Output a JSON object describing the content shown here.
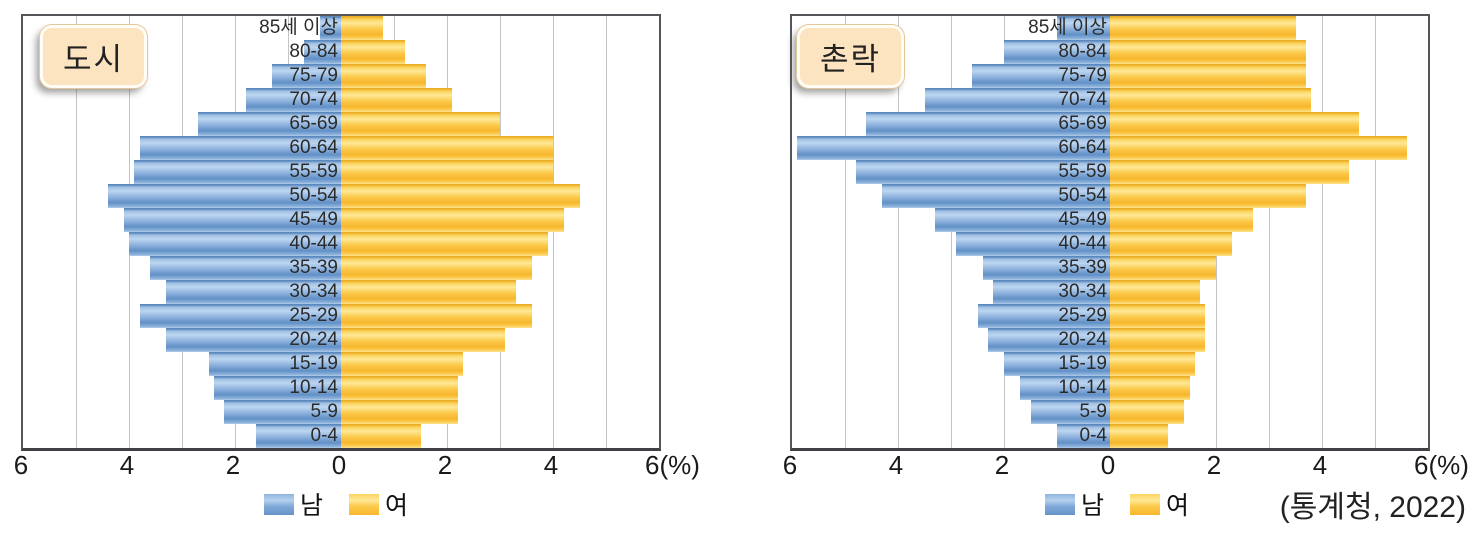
{
  "source_note": "(통계청, 2022)",
  "legend": {
    "male_label": "남",
    "female_label": "여"
  },
  "axis": {
    "tick_labels": [
      "6",
      "4",
      "2",
      "0",
      "2",
      "4",
      "6"
    ],
    "unit_suffix": "(%)",
    "max_percent": 6
  },
  "colors": {
    "male_bar": "#7ea8d8",
    "female_bar": "#fdc94a",
    "title_box_bg": "#fce4c0",
    "gridline": "#c3c4c6",
    "frame": "#55565a"
  },
  "age_groups_top_to_bottom": [
    "85세 이상",
    "80-84",
    "75-79",
    "70-74",
    "65-69",
    "60-64",
    "55-59",
    "50-54",
    "45-49",
    "40-44",
    "35-39",
    "30-34",
    "25-29",
    "20-24",
    "15-19",
    "10-14",
    "5-9",
    "0-4"
  ],
  "chart_data": [
    {
      "type": "bar",
      "variant": "population-pyramid",
      "title": "도시",
      "unit": "%",
      "xlim": [
        -6,
        6
      ],
      "grid": true,
      "legend_position": "bottom-center",
      "categories_order": "oldest-first",
      "categories": [
        "85세 이상",
        "80-84",
        "75-79",
        "70-74",
        "65-69",
        "60-64",
        "55-59",
        "50-54",
        "45-49",
        "40-44",
        "35-39",
        "30-34",
        "25-29",
        "20-24",
        "15-19",
        "10-14",
        "5-9",
        "0-4"
      ],
      "series": [
        {
          "name": "남",
          "side": "left",
          "values": [
            0.4,
            0.7,
            1.3,
            1.8,
            2.7,
            3.8,
            3.9,
            4.4,
            4.1,
            4.0,
            3.6,
            3.3,
            3.8,
            3.3,
            2.5,
            2.4,
            2.2,
            1.6
          ]
        },
        {
          "name": "여",
          "side": "right",
          "values": [
            0.8,
            1.2,
            1.6,
            2.1,
            3.0,
            4.0,
            4.0,
            4.5,
            4.2,
            3.9,
            3.6,
            3.3,
            3.6,
            3.1,
            2.3,
            2.2,
            2.2,
            1.5
          ]
        }
      ]
    },
    {
      "type": "bar",
      "variant": "population-pyramid",
      "title": "촌락",
      "unit": "%",
      "xlim": [
        -6,
        6
      ],
      "grid": true,
      "legend_position": "bottom-center",
      "categories_order": "oldest-first",
      "categories": [
        "85세 이상",
        "80-84",
        "75-79",
        "70-74",
        "65-69",
        "60-64",
        "55-59",
        "50-54",
        "45-49",
        "40-44",
        "35-39",
        "30-34",
        "25-29",
        "20-24",
        "15-19",
        "10-14",
        "5-9",
        "0-4"
      ],
      "series": [
        {
          "name": "남",
          "side": "left",
          "values": [
            1.0,
            2.0,
            2.6,
            3.5,
            4.6,
            5.9,
            4.8,
            4.3,
            3.3,
            2.9,
            2.4,
            2.2,
            2.5,
            2.3,
            2.0,
            1.7,
            1.5,
            1.0
          ]
        },
        {
          "name": "여",
          "side": "right",
          "values": [
            3.5,
            3.7,
            3.7,
            3.8,
            4.7,
            5.6,
            4.5,
            3.7,
            2.7,
            2.3,
            2.0,
            1.7,
            1.8,
            1.8,
            1.6,
            1.5,
            1.4,
            1.1
          ]
        }
      ]
    }
  ]
}
